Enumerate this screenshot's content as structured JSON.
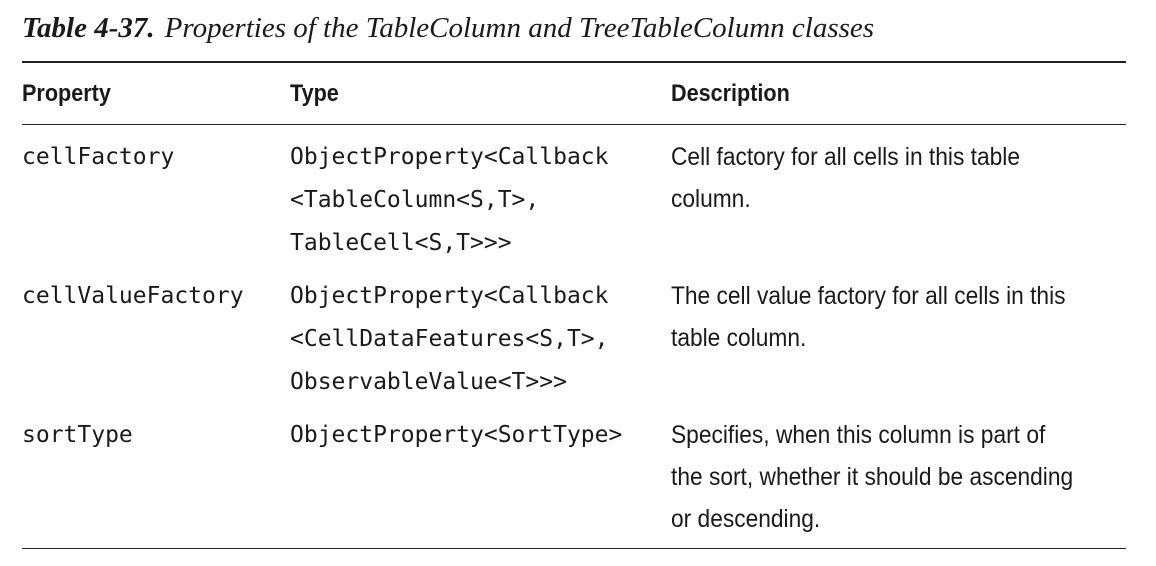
{
  "caption": {
    "number": "Table 4-37.",
    "text": "Properties of the TableColumn and TreeTableColumn classes"
  },
  "headers": {
    "property": "Property",
    "type": "Type",
    "description": "Description"
  },
  "rows": [
    {
      "property": "cellFactory",
      "type": [
        "ObjectProperty<Callback",
        "<TableColumn<S,T>,",
        "TableCell<S,T>>>"
      ],
      "description": [
        "Cell factory for all cells in this table",
        "column."
      ]
    },
    {
      "property": "cellValueFactory",
      "type": [
        "ObjectProperty<Callback",
        "<CellDataFeatures<S,T>,",
        "ObservableValue<T>>>"
      ],
      "description": [
        "The cell value factory for all cells in this",
        "table column."
      ]
    },
    {
      "property": "sortType",
      "type": [
        "ObjectProperty<SortType>"
      ],
      "description": [
        "Specifies, when this column is part of",
        "the sort, whether it should be ascending",
        "or descending."
      ]
    }
  ]
}
